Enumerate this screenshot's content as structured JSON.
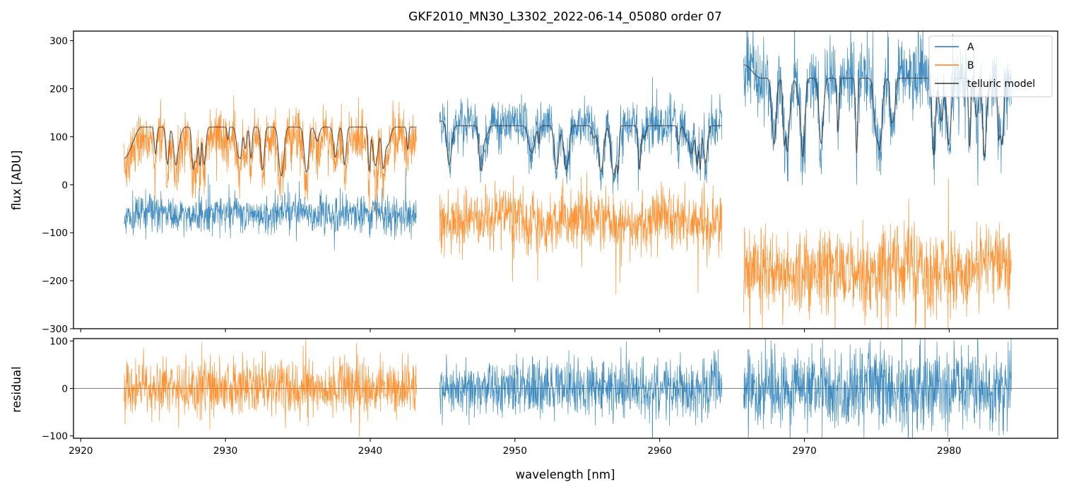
{
  "chart_data": {
    "type": "line",
    "title": "GKF2010_MN30_L3302_2022-06-14_05080  order 07",
    "xlabel": "wavelength [nm]",
    "xlim": [
      2919.5,
      2987.5
    ],
    "xticks": [
      2920,
      2930,
      2940,
      2950,
      2960,
      2970,
      2980
    ],
    "colors": {
      "A": "#1f77b4",
      "B": "#ff7f0e",
      "model": "#333333"
    },
    "segments": [
      {
        "x_start": 2923.0,
        "x_end": 2943.2,
        "A_level": -60,
        "B_level": 100,
        "A_noise": 20,
        "B_noise": 28,
        "model_level": 120,
        "model_start": 55,
        "residual_series": "B",
        "residual_noise": 30
      },
      {
        "x_start": 2944.8,
        "x_end": 2964.3,
        "A_level": 125,
        "B_level": -75,
        "A_noise": 24,
        "B_noise": 32,
        "model_level": 123,
        "model_start": 133,
        "residual_series": "A",
        "residual_noise": 30
      },
      {
        "x_start": 2965.8,
        "x_end": 2984.3,
        "A_level": 222,
        "B_level": -180,
        "A_noise": 38,
        "B_noise": 45,
        "model_level": 222,
        "model_start": 250,
        "residual_series": "A",
        "residual_noise": 42
      }
    ],
    "panels": [
      {
        "name": "flux",
        "ylabel": "flux [ADU]",
        "ylim": [
          -300,
          320
        ],
        "yticks": [
          -300,
          -200,
          -100,
          0,
          100,
          200,
          300
        ]
      },
      {
        "name": "residual",
        "ylabel": "residual",
        "ylim": [
          -105,
          105
        ],
        "yticks": [
          -100,
          0,
          100
        ],
        "zero_line": true
      }
    ],
    "legend": {
      "location": "top-right",
      "entries": [
        "A",
        "B",
        "telluric model"
      ]
    }
  }
}
